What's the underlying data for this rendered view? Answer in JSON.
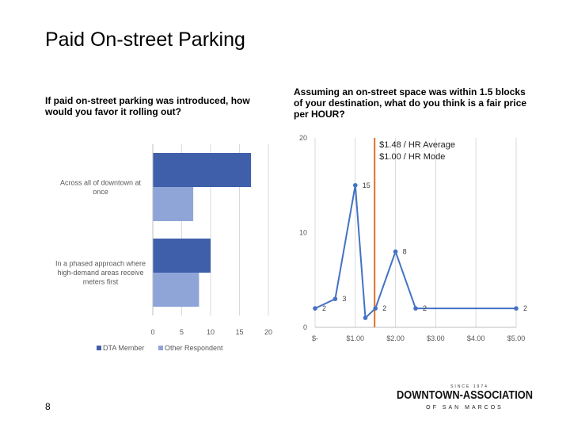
{
  "slide": {
    "title": "Paid On-street Parking",
    "page_number": "8"
  },
  "logo": {
    "name": "DOWNTOWN-ASSOCIATION",
    "top_text": "SINCE 1974",
    "sub_text": "OF SAN MARCOS"
  },
  "chart_data": [
    {
      "type": "bar",
      "orientation": "horizontal",
      "title": "If paid on-street parking was introduced, how would you favor it rolling out?",
      "categories": [
        [
          "Across all of downtown at",
          "once"
        ],
        [
          "In a phased approach where",
          "high-demand areas receive",
          "meters first"
        ]
      ],
      "series": [
        {
          "name": "DTA Member",
          "values": [
            17,
            10
          ],
          "color": "#3f5fab"
        },
        {
          "name": "Other Respondent",
          "values": [
            7,
            8
          ],
          "color": "#8fa5d8"
        }
      ],
      "xlim": [
        0,
        20
      ],
      "xticks": [
        0,
        5,
        10,
        15,
        20
      ],
      "grid": true,
      "legend": "bottom"
    },
    {
      "type": "line",
      "title": "Assuming an on-street space was within 1.5 blocks of your destination, what do you think is a fair price per HOUR?",
      "points": [
        {
          "x": 0,
          "y": 2,
          "label": "2"
        },
        {
          "x": 0.5,
          "y": 3,
          "label": "3"
        },
        {
          "x": 1.0,
          "y": 15,
          "label": "15"
        },
        {
          "x": 1.25,
          "y": 1,
          "label": ""
        },
        {
          "x": 1.5,
          "y": 2,
          "label": "2"
        },
        {
          "x": 2.0,
          "y": 8,
          "label": "8"
        },
        {
          "x": 2.5,
          "y": 2,
          "label": "2"
        },
        {
          "x": 5.0,
          "y": 2,
          "label": "2"
        }
      ],
      "series_color": "#4472c4",
      "xlim": [
        0,
        5
      ],
      "ylim": [
        0,
        20
      ],
      "xticks": [
        0,
        1,
        2,
        3,
        4,
        5
      ],
      "xtick_labels": [
        "$-",
        "$1.00",
        "$2.00",
        "$3.00",
        "$4.00",
        "$5.00"
      ],
      "yticks": [
        0,
        10,
        20
      ],
      "ytick_labels": [
        "0",
        "10",
        "20"
      ],
      "reference_line": {
        "x": 1.48,
        "color": "#e0702a",
        "labels": [
          "$1.48 / HR Average",
          "$1.00 / HR Mode"
        ]
      },
      "grid": true
    }
  ]
}
